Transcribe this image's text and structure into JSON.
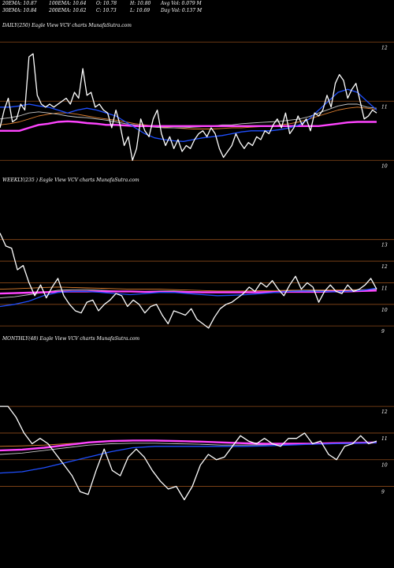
{
  "header": {
    "row1": [
      "20EMA: 10.87",
      "100EMA: 10.64",
      "O: 10.78",
      "H: 10.80",
      "Avg Vol: 0.079 M"
    ],
    "row2": [
      "30EMA: 10.84",
      "200EMA: 10.62",
      "C: 10.73",
      "L: 10.69",
      "Day Vol: 0.137 M"
    ]
  },
  "panels": {
    "daily": {
      "label": "DAILY(250) Eagle   View  VCV charts MunafaSutra.com"
    },
    "weekly": {
      "label": "WEEKLY(235                ) Eagle   View  VCV charts MunafaSutra.com"
    },
    "monthly": {
      "label": "MONTHLY(48) Eagle   View  VCV charts MunafaSutra.com"
    }
  },
  "colors": {
    "price": "#ffffff",
    "ema_fast": "#1f4fff",
    "ema_slow": "#ff44ff",
    "grid": "#8b4a1a",
    "ma_a": "#c8c8c8",
    "ma_b": "#e08030"
  },
  "chart_data": [
    {
      "type": "line",
      "title": "DAILY(250) Eagle View VCV charts MunafaSutra.com",
      "ylim": [
        9.75,
        12.15
      ],
      "yticks": [
        10,
        11,
        12
      ],
      "series": [
        {
          "key": "price",
          "values": [
            10.55,
            10.85,
            11.05,
            10.65,
            10.7,
            10.95,
            10.85,
            11.75,
            11.8,
            11.1,
            10.95,
            10.9,
            10.95,
            10.9,
            10.95,
            11.0,
            11.05,
            10.95,
            11.15,
            11.05,
            11.55,
            11.1,
            11.15,
            10.9,
            10.95,
            10.85,
            10.8,
            10.55,
            10.85,
            10.6,
            10.25,
            10.4,
            10.0,
            10.2,
            10.7,
            10.5,
            10.4,
            10.7,
            10.85,
            10.45,
            10.25,
            10.4,
            10.2,
            10.35,
            10.15,
            10.25,
            10.2,
            10.35,
            10.45,
            10.5,
            10.4,
            10.55,
            10.45,
            10.2,
            10.05,
            10.15,
            10.25,
            10.45,
            10.3,
            10.2,
            10.3,
            10.25,
            10.4,
            10.35,
            10.5,
            10.45,
            10.6,
            10.7,
            10.55,
            10.8,
            10.45,
            10.55,
            10.75,
            10.6,
            10.7,
            10.5,
            10.8,
            10.75,
            10.85,
            11.1,
            10.9,
            11.3,
            11.45,
            11.35,
            11.05,
            11.2,
            11.3,
            11.0,
            10.7,
            10.75,
            10.85,
            10.8
          ]
        },
        {
          "key": "ema_fast",
          "values": [
            10.9,
            10.9,
            10.92,
            10.95,
            10.92,
            10.9,
            10.85,
            10.8,
            10.85,
            10.88,
            10.85,
            10.8,
            10.75,
            10.65,
            10.55,
            10.45,
            10.38,
            10.35,
            10.33,
            10.32,
            10.35,
            10.38,
            10.4,
            10.42,
            10.45,
            10.48,
            10.5,
            10.5,
            10.5,
            10.52,
            10.55,
            10.6,
            10.7,
            10.85,
            11.0,
            11.15,
            11.2,
            11.15,
            11.0,
            10.85
          ]
        },
        {
          "key": "ema_slow",
          "values": [
            10.5,
            10.5,
            10.5,
            10.55,
            10.6,
            10.62,
            10.65,
            10.66,
            10.65,
            10.63,
            10.62,
            10.6,
            10.6,
            10.59,
            10.58,
            10.58,
            10.58,
            10.58,
            10.58,
            10.58,
            10.58,
            10.58,
            10.58,
            10.58,
            10.58,
            10.58,
            10.58,
            10.58,
            10.58,
            10.58,
            10.58,
            10.58,
            10.58,
            10.58,
            10.6,
            10.62,
            10.64,
            10.65,
            10.65,
            10.65
          ]
        },
        {
          "key": "ma_a",
          "values": [
            10.7,
            10.72,
            10.75,
            10.8,
            10.82,
            10.8,
            10.78,
            10.75,
            10.73,
            10.72,
            10.7,
            10.68,
            10.65,
            10.62,
            10.6,
            10.58,
            10.56,
            10.55,
            10.55,
            10.55,
            10.56,
            10.57,
            10.58,
            10.6,
            10.6,
            10.62,
            10.63,
            10.64,
            10.65,
            10.66,
            10.68,
            10.7,
            10.74,
            10.8,
            10.86,
            10.92,
            10.95,
            10.95,
            10.9,
            10.88
          ]
        },
        {
          "key": "ma_b",
          "values": [
            10.6,
            10.62,
            10.65,
            10.7,
            10.75,
            10.78,
            10.8,
            10.8,
            10.78,
            10.75,
            10.72,
            10.7,
            10.68,
            10.65,
            10.62,
            10.6,
            10.58,
            10.56,
            10.55,
            10.54,
            10.53,
            10.53,
            10.53,
            10.54,
            10.55,
            10.55,
            10.56,
            10.57,
            10.58,
            10.6,
            10.62,
            10.65,
            10.7,
            10.75,
            10.8,
            10.85,
            10.88,
            10.9,
            10.88,
            10.86
          ]
        }
      ]
    },
    {
      "type": "line",
      "title": "WEEKLY(235) Eagle View VCV charts MunafaSutra.com",
      "ylim": [
        8.75,
        13.5
      ],
      "yticks": [
        9,
        10,
        11,
        12,
        13
      ],
      "series": [
        {
          "key": "price",
          "values": [
            13.3,
            12.7,
            12.6,
            11.6,
            11.8,
            11.0,
            10.4,
            10.9,
            10.3,
            10.8,
            11.2,
            10.4,
            10.0,
            9.7,
            9.6,
            10.1,
            10.2,
            9.7,
            10.0,
            10.2,
            10.5,
            10.4,
            9.9,
            10.2,
            10.0,
            9.6,
            9.9,
            10.0,
            9.5,
            9.1,
            9.7,
            9.6,
            9.5,
            9.8,
            9.3,
            9.1,
            8.9,
            9.4,
            9.8,
            10.0,
            10.1,
            10.3,
            10.5,
            10.8,
            10.6,
            11.0,
            10.8,
            11.1,
            10.7,
            10.4,
            10.9,
            11.3,
            10.7,
            11.0,
            10.8,
            10.1,
            10.6,
            10.9,
            10.6,
            10.5,
            10.9,
            10.6,
            10.7,
            10.9,
            11.2,
            10.7
          ]
        },
        {
          "key": "ema_fast",
          "values": [
            9.9,
            10.0,
            10.15,
            10.4,
            10.55,
            10.6,
            10.6,
            10.55,
            10.5,
            10.45,
            10.5,
            10.55,
            10.55,
            10.5,
            10.45,
            10.4,
            10.42,
            10.45,
            10.5,
            10.55,
            10.6,
            10.62,
            10.6,
            10.58,
            10.6,
            10.65,
            10.75
          ]
        },
        {
          "key": "ema_slow",
          "values": [
            10.5,
            10.52,
            10.54,
            10.56,
            10.58,
            10.6,
            10.6,
            10.6,
            10.6,
            10.6,
            10.58,
            10.58,
            10.57,
            10.57,
            10.56,
            10.56,
            10.56,
            10.56,
            10.56,
            10.57,
            10.58,
            10.58,
            10.58,
            10.6,
            10.6,
            10.62,
            10.64
          ]
        },
        {
          "key": "ma_a",
          "values": [
            10.3,
            10.35,
            10.45,
            10.55,
            10.65,
            10.68,
            10.68,
            10.65,
            10.62,
            10.6,
            10.6,
            10.62,
            10.62,
            10.6,
            10.58,
            10.55,
            10.55,
            10.56,
            10.58,
            10.6,
            10.62,
            10.64,
            10.64,
            10.63,
            10.64,
            10.66,
            10.7
          ]
        },
        {
          "key": "ma_b",
          "values": [
            10.7,
            10.72,
            10.75,
            10.78,
            10.8,
            10.78,
            10.76,
            10.74,
            10.72,
            10.7,
            10.7,
            10.7,
            10.68,
            10.66,
            10.64,
            10.62,
            10.62,
            10.62,
            10.63,
            10.64,
            10.65,
            10.66,
            10.66,
            10.66,
            10.67,
            10.68,
            10.7
          ]
        }
      ]
    },
    {
      "type": "line",
      "title": "MONTHLY(48) Eagle View VCV charts MunafaSutra.com",
      "ylim": [
        8.75,
        12.3
      ],
      "yticks": [
        9,
        10,
        11,
        12
      ],
      "series": [
        {
          "key": "price",
          "values": [
            12.0,
            12.0,
            11.6,
            11.0,
            10.6,
            10.8,
            10.6,
            10.2,
            9.8,
            9.4,
            8.8,
            8.7,
            9.6,
            10.4,
            9.6,
            9.4,
            10.1,
            10.4,
            10.1,
            9.6,
            9.2,
            8.9,
            9.0,
            8.5,
            9.0,
            9.8,
            10.2,
            10.0,
            10.1,
            10.5,
            10.9,
            10.7,
            10.6,
            10.8,
            10.6,
            10.5,
            10.8,
            10.8,
            11.0,
            10.6,
            10.7,
            10.2,
            10.0,
            10.5,
            10.6,
            10.9,
            10.6,
            10.7
          ]
        },
        {
          "key": "ema_fast",
          "values": [
            9.5,
            9.55,
            9.7,
            9.9,
            10.1,
            10.3,
            10.45,
            10.5,
            10.5,
            10.5,
            10.5,
            10.5,
            10.52,
            10.55,
            10.58,
            10.6,
            10.62,
            10.64
          ]
        },
        {
          "key": "ema_slow",
          "values": [
            10.35,
            10.38,
            10.45,
            10.55,
            10.65,
            10.7,
            10.72,
            10.72,
            10.7,
            10.68,
            10.65,
            10.62,
            10.6,
            10.6,
            10.6,
            10.62,
            10.63,
            10.65
          ]
        },
        {
          "key": "ma_a",
          "values": [
            10.2,
            10.25,
            10.35,
            10.45,
            10.55,
            10.6,
            10.62,
            10.62,
            10.6,
            10.58,
            10.55,
            10.55,
            10.56,
            10.58,
            10.6,
            10.62,
            10.64,
            10.66
          ]
        },
        {
          "key": "ma_b",
          "values": [
            10.5,
            10.52,
            10.55,
            10.6,
            10.65,
            10.68,
            10.7,
            10.7,
            10.68,
            10.66,
            10.64,
            10.62,
            10.6,
            10.6,
            10.6,
            10.62,
            10.64,
            10.66
          ]
        }
      ]
    }
  ]
}
